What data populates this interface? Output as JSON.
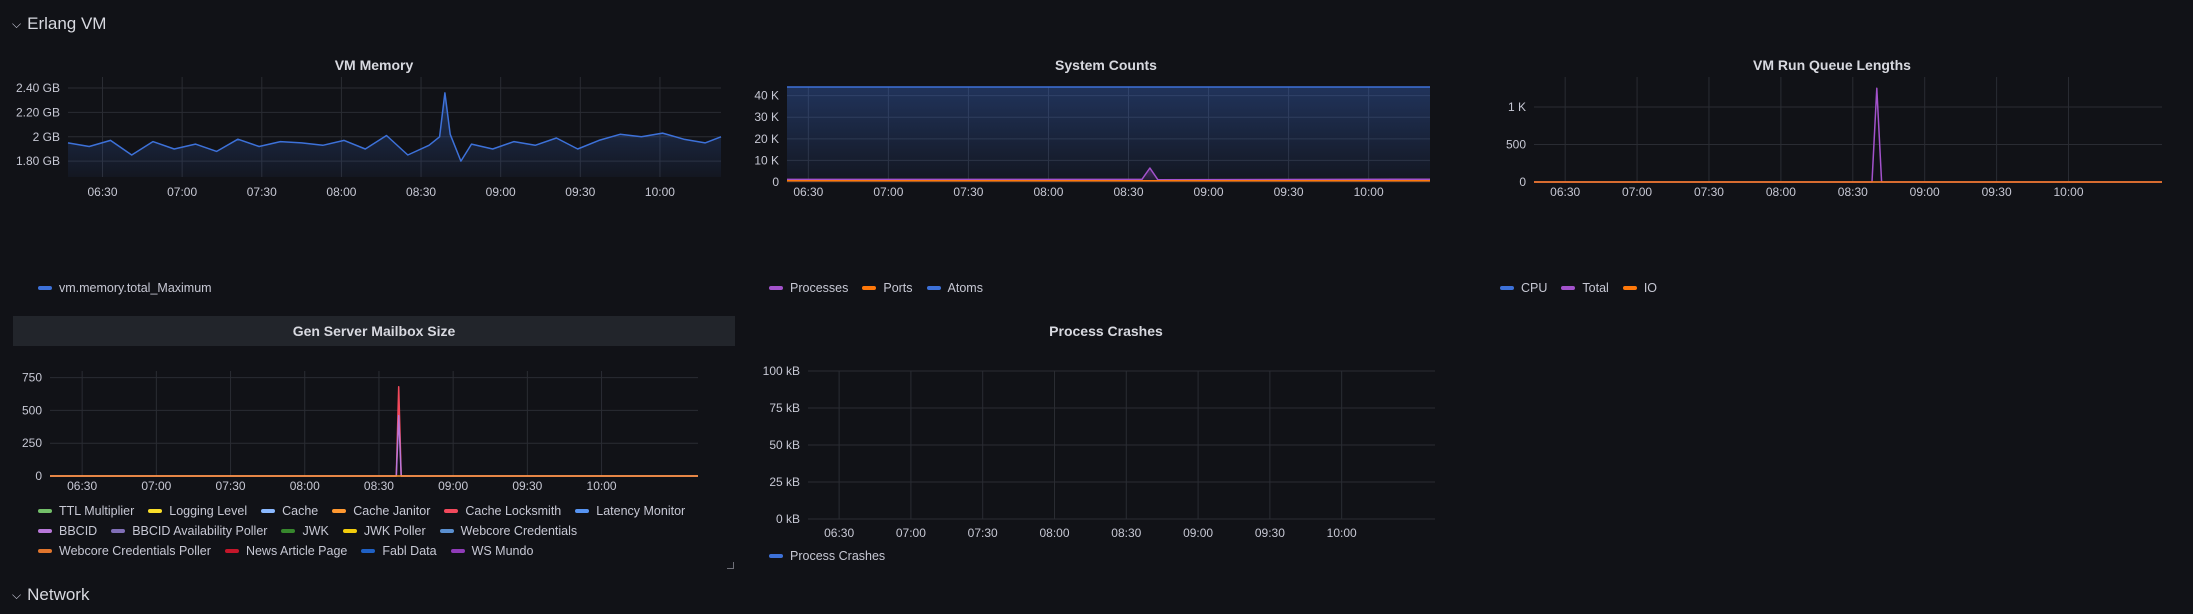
{
  "rows": {
    "erlang_vm": "Erlang VM",
    "network": "Network"
  },
  "panels": {
    "vm_memory": {
      "title": "VM Memory",
      "legend": [
        {
          "label": "vm.memory.total_Maximum",
          "color": "#3d71d9"
        }
      ]
    },
    "system_counts": {
      "title": "System Counts",
      "legend": [
        {
          "label": "Processes",
          "color": "#a352cc"
        },
        {
          "label": "Ports",
          "color": "#ff780a"
        },
        {
          "label": "Atoms",
          "color": "#3d71d9"
        }
      ]
    },
    "run_queue": {
      "title": "VM Run Queue Lengths",
      "legend": [
        {
          "label": "CPU",
          "color": "#3d71d9"
        },
        {
          "label": "Total",
          "color": "#a352cc"
        },
        {
          "label": "IO",
          "color": "#ff780a"
        }
      ]
    },
    "gen_server": {
      "title": "Gen Server Mailbox Size",
      "legend": [
        {
          "label": "TTL Multiplier",
          "color": "#73bf69"
        },
        {
          "label": "Logging Level",
          "color": "#fade2a"
        },
        {
          "label": "Cache",
          "color": "#8ab8ff"
        },
        {
          "label": "Cache Janitor",
          "color": "#ff9830"
        },
        {
          "label": "Cache Locksmith",
          "color": "#f2495c"
        },
        {
          "label": "Latency Monitor",
          "color": "#5794f2"
        },
        {
          "label": "BBCID",
          "color": "#b877d9"
        },
        {
          "label": "BBCID Availability Poller",
          "color": "#806eb7"
        },
        {
          "label": "JWK",
          "color": "#37872d"
        },
        {
          "label": "JWK Poller",
          "color": "#f2cc0c"
        },
        {
          "label": "Webcore Credentials",
          "color": "#5a8fd0"
        },
        {
          "label": "Webcore Credentials Poller",
          "color": "#e0752d"
        },
        {
          "label": "News Article Page",
          "color": "#c4162a"
        },
        {
          "label": "Fabl Data",
          "color": "#1f60c4"
        },
        {
          "label": "WS Mundo",
          "color": "#8f3bb8"
        }
      ]
    },
    "process_crashes": {
      "title": "Process Crashes",
      "legend": [
        {
          "label": "Process Crashes",
          "color": "#3d71d9"
        }
      ]
    }
  },
  "chart_data": [
    {
      "id": "vm_memory",
      "type": "area",
      "title": "VM Memory",
      "x_ticks": [
        "06:30",
        "07:00",
        "07:30",
        "08:00",
        "08:30",
        "09:00",
        "09:30",
        "10:00"
      ],
      "y_ticks": [
        "1.80 GB",
        "2.20 GB",
        "2 GB",
        "2.40 GB"
      ],
      "y_ticks_ordered": [
        {
          "label": "1.80 GB",
          "value": 1.8
        },
        {
          "label": "2 GB",
          "value": 2.0
        },
        {
          "label": "2.20 GB",
          "value": 2.2
        },
        {
          "label": "2.40 GB",
          "value": 2.4
        }
      ],
      "ylim": [
        1.67,
        2.49
      ],
      "xlim": [
        "06:17",
        "10:23"
      ],
      "series": [
        {
          "name": "vm.memory.total_Maximum",
          "color": "#3d71d9",
          "x": [
            "06:17",
            "06:25",
            "06:33",
            "06:41",
            "06:49",
            "06:57",
            "07:05",
            "07:13",
            "07:21",
            "07:29",
            "07:37",
            "07:45",
            "07:53",
            "08:01",
            "08:09",
            "08:17",
            "08:25",
            "08:33",
            "08:37",
            "08:39",
            "08:41",
            "08:45",
            "08:49",
            "08:57",
            "09:05",
            "09:13",
            "09:21",
            "09:29",
            "09:37",
            "09:45",
            "09:53",
            "10:01",
            "10:09",
            "10:17",
            "10:23"
          ],
          "values": [
            1.95,
            1.92,
            1.97,
            1.85,
            1.96,
            1.9,
            1.94,
            1.88,
            1.98,
            1.92,
            1.96,
            1.95,
            1.93,
            1.97,
            1.9,
            2.01,
            1.85,
            1.93,
            2.0,
            2.36,
            2.02,
            1.8,
            1.94,
            1.9,
            1.96,
            1.93,
            1.99,
            1.9,
            1.97,
            2.02,
            2.0,
            2.03,
            1.98,
            1.95,
            2.0
          ]
        }
      ]
    },
    {
      "id": "system_counts",
      "type": "area",
      "title": "System Counts",
      "x_ticks": [
        "06:30",
        "07:00",
        "07:30",
        "08:00",
        "08:30",
        "09:00",
        "09:30",
        "10:00"
      ],
      "y_ticks": [
        "0",
        "10 K",
        "20 K",
        "30 K",
        "40 K"
      ],
      "y_values": [
        0,
        10000,
        20000,
        30000,
        40000
      ],
      "ylim": [
        0,
        44000
      ],
      "xlim": [
        "06:22",
        "10:23"
      ],
      "series": [
        {
          "name": "Atoms",
          "color": "#3d71d9",
          "x": [
            "06:22",
            "10:23"
          ],
          "values": [
            44000,
            44000
          ]
        },
        {
          "name": "Processes",
          "color": "#a352cc",
          "x": [
            "06:22",
            "08:35",
            "08:38",
            "08:41",
            "10:23"
          ],
          "values": [
            1200,
            1200,
            6500,
            1000,
            1300
          ]
        },
        {
          "name": "Ports",
          "color": "#ff780a",
          "x": [
            "06:22",
            "10:23"
          ],
          "values": [
            600,
            600
          ]
        }
      ]
    },
    {
      "id": "run_queue",
      "type": "line",
      "title": "VM Run Queue Lengths",
      "x_ticks": [
        "06:30",
        "07:00",
        "07:30",
        "08:00",
        "08:30",
        "09:00",
        "09:30",
        "10:00"
      ],
      "y_ticks": [
        "0",
        "500",
        "1 K"
      ],
      "y_values": [
        0,
        500,
        1000
      ],
      "ylim": [
        0,
        1400
      ],
      "xlim": [
        "06:17",
        "10:39"
      ],
      "series": [
        {
          "name": "CPU",
          "color": "#3d71d9",
          "x": [
            "06:17",
            "10:39"
          ],
          "values": [
            0,
            0
          ]
        },
        {
          "name": "Total",
          "color": "#a352cc",
          "x": [
            "06:17",
            "08:38",
            "08:40",
            "08:42",
            "10:39"
          ],
          "values": [
            0,
            0,
            1250,
            0,
            0
          ]
        },
        {
          "name": "IO",
          "color": "#ff780a",
          "x": [
            "06:17",
            "10:39"
          ],
          "values": [
            0,
            0
          ]
        }
      ]
    },
    {
      "id": "gen_server",
      "type": "line",
      "title": "Gen Server Mailbox Size",
      "x_ticks": [
        "06:30",
        "07:00",
        "07:30",
        "08:00",
        "08:30",
        "09:00",
        "09:30",
        "10:00"
      ],
      "y_ticks": [
        "0",
        "250",
        "500",
        "750"
      ],
      "y_values": [
        0,
        250,
        500,
        750
      ],
      "ylim": [
        0,
        800
      ],
      "xlim": [
        "06:17",
        "10:39"
      ],
      "series": [
        {
          "name": "Cache Locksmith",
          "color": "#f2495c",
          "x": [
            "06:17",
            "08:37",
            "08:38",
            "08:39",
            "10:39"
          ],
          "values": [
            0,
            0,
            680,
            0,
            0
          ]
        },
        {
          "name": "BBCID",
          "color": "#b877d9",
          "x": [
            "06:17",
            "08:37",
            "08:38",
            "08:39",
            "10:39"
          ],
          "values": [
            0,
            0,
            460,
            0,
            0
          ]
        },
        {
          "name": "Cache Janitor",
          "color": "#ff9830",
          "x": [
            "06:17",
            "10:39"
          ],
          "values": [
            0,
            0
          ]
        }
      ]
    },
    {
      "id": "process_crashes",
      "type": "line",
      "title": "Process Crashes",
      "x_ticks": [
        "06:30",
        "07:00",
        "07:30",
        "08:00",
        "08:30",
        "09:00",
        "09:30",
        "10:00"
      ],
      "y_ticks": [
        "0 kB",
        "25 kB",
        "50 kB",
        "75 kB",
        "100 kB"
      ],
      "y_values": [
        0,
        25,
        50,
        75,
        100
      ],
      "ylim": [
        0,
        100
      ],
      "xlim": [
        "06:17",
        "10:39"
      ],
      "series": []
    }
  ]
}
